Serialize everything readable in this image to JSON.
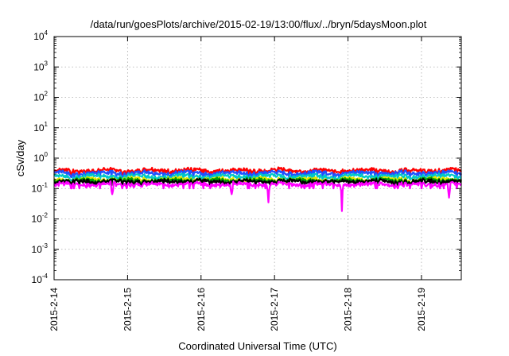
{
  "chart_data": {
    "type": "line",
    "title": "/data/run/goesPlots/archive/2015-02-19/13:00/flux/../bryn/5daysMoon.plot",
    "xlabel": "Coordinated Universal Time (UTC)",
    "ylabel": "cSv/day",
    "y_scale": "log",
    "ylim": [
      0.0001,
      10000
    ],
    "xlim": [
      "2015-02-14T00:00",
      "2015-02-19T13:00"
    ],
    "x_ticks": [
      "2015-2-14",
      "2015-2-15",
      "2015-2-16",
      "2015-2-17",
      "2015-2-18",
      "2015-2-19"
    ],
    "y_ticks": [
      {
        "base": "10",
        "exp": "-4",
        "value": 0.0001
      },
      {
        "base": "10",
        "exp": "-3",
        "value": 0.001
      },
      {
        "base": "10",
        "exp": "-2",
        "value": 0.01
      },
      {
        "base": "10",
        "exp": "-1",
        "value": 0.1
      },
      {
        "base": "10",
        "exp": "0",
        "value": 1
      },
      {
        "base": "10",
        "exp": "1",
        "value": 10
      },
      {
        "base": "10",
        "exp": "2",
        "value": 100
      },
      {
        "base": "10",
        "exp": "3",
        "value": 1000
      },
      {
        "base": "10",
        "exp": "4",
        "value": 10000
      }
    ],
    "grid": true,
    "legend": "none",
    "series": [
      {
        "color": "#ff0000",
        "baseline": 0.4
      },
      {
        "color": "#2050ff",
        "baseline": 0.33
      },
      {
        "color": "#00c8c8",
        "baseline": 0.26
      },
      {
        "color": "#e8e800",
        "baseline": 0.205
      },
      {
        "color": "#00a000",
        "baseline": 0.19
      },
      {
        "color": "#000000",
        "baseline": 0.175
      },
      {
        "color": "#ff00ff",
        "baseline": 0.14
      }
    ],
    "dips": [
      {
        "x": "2015-02-14T19:00",
        "value": 0.065
      },
      {
        "x": "2015-02-16T10:00",
        "value": 0.065
      },
      {
        "x": "2015-02-16T22:00",
        "value": 0.035
      },
      {
        "x": "2015-02-17T22:00",
        "value": 0.018
      },
      {
        "x": "2015-02-19T09:00",
        "value": 0.05
      }
    ]
  }
}
